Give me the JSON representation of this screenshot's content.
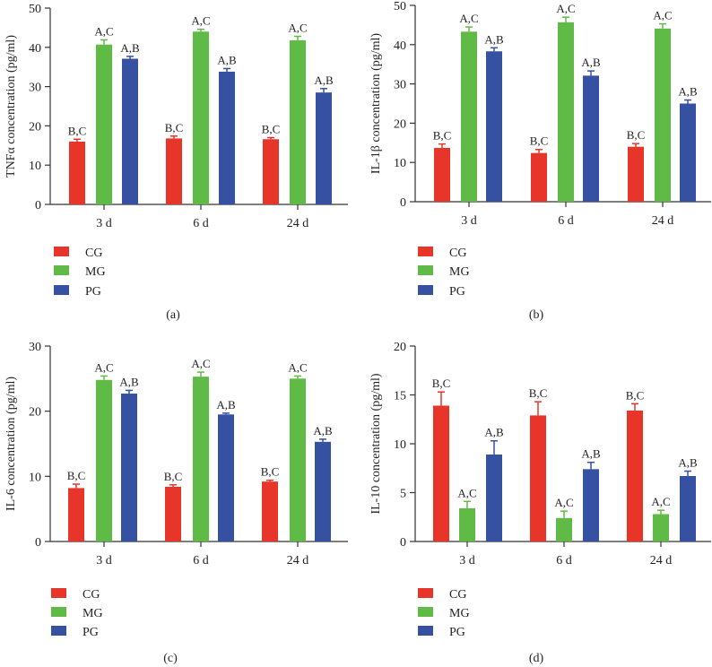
{
  "colors": {
    "CG": "#e8352a",
    "MG": "#5fbb45",
    "PG": "#3650a2"
  },
  "chart_data": [
    {
      "type": "bar",
      "caption": "(a)",
      "ylabel": "TNFα concentration (pg/ml)",
      "ylim": [
        0,
        50
      ],
      "yticks": [
        0,
        10,
        20,
        30,
        40,
        50
      ],
      "categories": [
        "3 d",
        "6 d",
        "24 d"
      ],
      "series": [
        {
          "name": "CG",
          "values": [
            16.0,
            16.8,
            16.6
          ],
          "errors": [
            0.6,
            0.6,
            0.4
          ],
          "labels": [
            "B,C",
            "B,C",
            "B,C"
          ]
        },
        {
          "name": "MG",
          "values": [
            40.7,
            44.0,
            41.8
          ],
          "errors": [
            1.2,
            0.6,
            1.0
          ],
          "labels": [
            "A,C",
            "A,C",
            "A,C"
          ]
        },
        {
          "name": "PG",
          "values": [
            37.1,
            33.8,
            28.5
          ],
          "errors": [
            0.6,
            0.8,
            1.0
          ],
          "labels": [
            "A,B",
            "A,B",
            "A,B"
          ]
        }
      ]
    },
    {
      "type": "bar",
      "caption": "(b)",
      "ylabel": "IL-1β concentration (pg/ml)",
      "ylim": [
        0,
        50
      ],
      "yticks": [
        0,
        10,
        20,
        30,
        40,
        50
      ],
      "categories": [
        "3 d",
        "6 d",
        "24 d"
      ],
      "series": [
        {
          "name": "CG",
          "values": [
            13.7,
            12.4,
            14.0
          ],
          "errors": [
            1.0,
            0.9,
            0.8
          ],
          "labels": [
            "B,C",
            "B,C",
            "B,C"
          ]
        },
        {
          "name": "MG",
          "values": [
            43.3,
            45.7,
            44.1
          ],
          "errors": [
            1.2,
            1.3,
            1.2
          ],
          "labels": [
            "A,C",
            "A,C",
            "A,C"
          ]
        },
        {
          "name": "PG",
          "values": [
            38.3,
            32.1,
            25.0
          ],
          "errors": [
            0.9,
            1.2,
            0.9
          ],
          "labels": [
            "A,B",
            "A,B",
            "A,B"
          ]
        }
      ]
    },
    {
      "type": "bar",
      "caption": "(c)",
      "ylabel": "IL-6 concentration (pg/ml)",
      "ylim": [
        0,
        30
      ],
      "yticks": [
        0,
        10,
        20,
        30
      ],
      "categories": [
        "3 d",
        "6 d",
        "24 d"
      ],
      "series": [
        {
          "name": "CG",
          "values": [
            8.2,
            8.4,
            9.2
          ],
          "errors": [
            0.6,
            0.3,
            0.2
          ],
          "labels": [
            "B,C",
            "B,C",
            "B,C"
          ]
        },
        {
          "name": "MG",
          "values": [
            24.8,
            25.3,
            25.0
          ],
          "errors": [
            0.6,
            0.7,
            0.4
          ],
          "labels": [
            "A,C",
            "A,C",
            "A,C"
          ]
        },
        {
          "name": "PG",
          "values": [
            22.7,
            19.5,
            15.3
          ],
          "errors": [
            0.5,
            0.2,
            0.4
          ],
          "labels": [
            "A,B",
            "A,B",
            "A,B"
          ]
        }
      ]
    },
    {
      "type": "bar",
      "caption": "(d)",
      "ylabel": "IL-10 concentration (pg/ml)",
      "ylim": [
        0,
        20
      ],
      "yticks": [
        0,
        5,
        10,
        15,
        20
      ],
      "categories": [
        "3 d",
        "6 d",
        "24 d"
      ],
      "series": [
        {
          "name": "CG",
          "values": [
            13.9,
            12.9,
            13.4
          ],
          "errors": [
            1.4,
            1.4,
            0.7
          ],
          "labels": [
            "B,C",
            "B,C",
            "B,C"
          ]
        },
        {
          "name": "MG",
          "values": [
            3.4,
            2.4,
            2.8
          ],
          "errors": [
            0.7,
            0.7,
            0.4
          ],
          "labels": [
            "A,C",
            "A,C",
            "A,C"
          ]
        },
        {
          "name": "PG",
          "values": [
            8.9,
            7.4,
            6.7
          ],
          "errors": [
            1.4,
            0.7,
            0.5
          ],
          "labels": [
            "A,B",
            "A,B",
            "A,B"
          ]
        }
      ]
    }
  ],
  "legend": [
    {
      "key": "CG",
      "label": "CG"
    },
    {
      "key": "MG",
      "label": "MG"
    },
    {
      "key": "PG",
      "label": "PG"
    }
  ]
}
